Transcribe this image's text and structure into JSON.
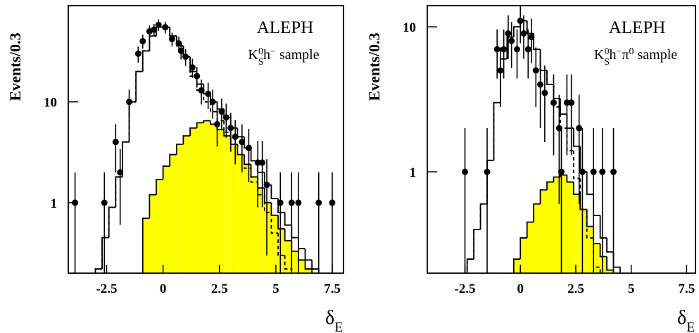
{
  "chart_data": [
    {
      "type": "histogram",
      "ylabel": "Events/0.3",
      "xlabel": [
        {
          "text": "δ"
        },
        {
          "text": "E",
          "pos": "sub"
        }
      ],
      "annotations": [
        "ALEPH"
      ],
      "sample_label": [
        {
          "text": "K"
        },
        {
          "text": "S",
          "pos": "sub"
        },
        {
          "text": "0",
          "pos": "sup"
        },
        {
          "text": "h"
        },
        {
          "text": "−",
          "pos": "sup"
        },
        {
          "text": " sample"
        }
      ],
      "xlim": [
        -4.2,
        8.0
      ],
      "ylim": [
        0.2,
        90
      ],
      "log_y": true,
      "xticks": [
        -2.5,
        0,
        2.5,
        5,
        7.5
      ],
      "yticks": [
        1,
        10
      ],
      "bins": [
        -3.0,
        -2.7,
        -2.4,
        -2.1,
        -1.8,
        -1.5,
        -1.2,
        -0.9,
        -0.6,
        -0.3,
        0,
        0.3,
        0.6,
        0.9,
        1.2,
        1.5,
        1.8,
        2.1,
        2.4,
        2.7,
        3.0,
        3.3,
        3.6,
        3.9,
        4.2,
        4.5,
        4.8,
        5.1,
        5.4,
        5.7,
        6.0,
        6.3,
        6.6,
        6.9,
        7.2,
        7.5
      ],
      "series": [
        {
          "style": "filled",
          "color": "#ffff00",
          "values": [
            null,
            null,
            null,
            null,
            null,
            null,
            null,
            0.7,
            1.2,
            1.7,
            2.3,
            3,
            3.8,
            4.6,
            5.5,
            6.2,
            6.5,
            6,
            5.3,
            4.6,
            3.8,
            3,
            2.4,
            1.8,
            1.4,
            1.0,
            0.75,
            0.55,
            0.42,
            0.33,
            0.27,
            0.22,
            null,
            null,
            null
          ]
        },
        {
          "style": "dashed",
          "color": "#000000",
          "values": [
            0.22,
            0.45,
            0.9,
            1.8,
            4,
            10,
            20,
            32,
            45,
            55,
            55,
            45,
            36,
            28,
            18,
            13,
            10,
            8,
            6.5,
            5,
            3.8,
            3,
            2.2,
            1.6,
            1.2,
            0.8,
            0.5,
            0.3,
            0.22,
            null,
            null,
            null,
            null,
            null,
            null
          ]
        },
        {
          "style": "solid",
          "color": "#000000",
          "values": [
            0.22,
            0.45,
            0.9,
            1.8,
            4,
            10,
            20,
            32,
            45,
            55,
            55,
            45,
            36,
            28,
            20,
            15,
            12,
            10,
            8.5,
            7,
            5.5,
            4.5,
            3.5,
            2.6,
            2.0,
            1.5,
            1.1,
            0.8,
            0.6,
            0.45,
            0.35,
            0.27,
            0.22,
            null,
            null
          ]
        }
      ],
      "points": {
        "color": "#000000",
        "x": [
          -3.9,
          -2.6,
          -2.1,
          -1.9,
          -1.5,
          -1.1,
          -0.9,
          -0.6,
          -0.4,
          -0.2,
          0.1,
          0.4,
          0.7,
          0.8,
          1.0,
          1.3,
          1.5,
          1.7,
          2.0,
          2.2,
          2.4,
          2.6,
          2.8,
          3.0,
          3.2,
          3.5,
          3.8,
          4.2,
          4.4,
          4.6,
          5.2,
          5.7,
          6.0,
          6.9,
          7.5
        ],
        "values": [
          1,
          1,
          4,
          2,
          10,
          30,
          40,
          50,
          52,
          58,
          55,
          42,
          38,
          32,
          28,
          22,
          18,
          13,
          12,
          10,
          6,
          8,
          7,
          5.5,
          4.5,
          4,
          3.5,
          2.5,
          2.5,
          1.5,
          1,
          1,
          1,
          1,
          1
        ],
        "errors": [
          1,
          1,
          2,
          1.4,
          3.2,
          5.5,
          6.3,
          7.1,
          7.2,
          7.6,
          7.4,
          6.5,
          6.2,
          5.7,
          5.3,
          4.7,
          4.2,
          3.6,
          3.5,
          3.2,
          2.4,
          2.8,
          2.6,
          2.3,
          2.1,
          2,
          1.9,
          1.6,
          1.6,
          1.2,
          1,
          1,
          1,
          1,
          1
        ]
      }
    },
    {
      "type": "histogram",
      "ylabel": "Events/0.3",
      "xlabel": [
        {
          "text": "δ"
        },
        {
          "text": "E",
          "pos": "sub"
        }
      ],
      "annotations": [
        "ALEPH"
      ],
      "sample_label": [
        {
          "text": "K"
        },
        {
          "text": "S",
          "pos": "sub"
        },
        {
          "text": "0",
          "pos": "sup"
        },
        {
          "text": "h"
        },
        {
          "text": "−",
          "pos": "sup"
        },
        {
          "text": "π"
        },
        {
          "text": "0",
          "pos": "sup"
        },
        {
          "text": " sample"
        }
      ],
      "xlim": [
        -4.2,
        7.9
      ],
      "ylim": [
        0.2,
        14
      ],
      "log_y": true,
      "xticks": [
        -2.5,
        0,
        2.5,
        5,
        7.5
      ],
      "yticks": [
        1,
        10
      ],
      "bins": [
        -2.7,
        -2.4,
        -2.1,
        -1.8,
        -1.5,
        -1.2,
        -0.9,
        -0.6,
        -0.3,
        0,
        0.3,
        0.6,
        0.9,
        1.2,
        1.5,
        1.8,
        2.1,
        2.4,
        2.7,
        3.0,
        3.3,
        3.6,
        3.9,
        4.2,
        4.5
      ],
      "series": [
        {
          "style": "filled",
          "color": "#ffff00",
          "values": [
            null,
            null,
            null,
            null,
            null,
            null,
            null,
            null,
            0.25,
            0.35,
            0.45,
            0.6,
            0.75,
            0.85,
            0.92,
            0.95,
            0.85,
            0.7,
            0.55,
            0.42,
            0.32,
            0.26,
            0.21,
            null
          ]
        },
        {
          "style": "dashed",
          "color": "#000000",
          "values": [
            null,
            0.25,
            0.4,
            0.6,
            1.2,
            3,
            6,
            8.5,
            10,
            11,
            9,
            7,
            5,
            4,
            2.8,
            2,
            1.4,
            0.9,
            0.55,
            0.35,
            0.22,
            null,
            null,
            null
          ]
        },
        {
          "style": "solid",
          "color": "#000000",
          "values": [
            null,
            0.25,
            0.4,
            0.6,
            1.2,
            3,
            6,
            8.5,
            10,
            11,
            9,
            7,
            5,
            4,
            3.2,
            2.5,
            2,
            1.5,
            1.0,
            0.7,
            0.5,
            0.35,
            0.28,
            0.22
          ]
        }
      ],
      "points": {
        "color": "#000000",
        "x": [
          -2.5,
          -1.5,
          -1.05,
          -0.9,
          -0.75,
          -0.55,
          -0.4,
          -0.15,
          0.0,
          0.15,
          0.35,
          0.5,
          0.7,
          0.9,
          1.1,
          1.5,
          1.75,
          1.85,
          2.1,
          2.3,
          2.65,
          2.8,
          3.3,
          3.7,
          4.2
        ],
        "values": [
          1,
          1,
          7,
          5,
          7,
          9,
          8,
          7,
          11,
          9,
          7,
          8.5,
          5,
          4,
          3.5,
          3,
          2,
          1,
          3,
          3,
          2,
          1,
          1,
          1,
          1
        ],
        "errors": [
          1,
          1,
          2.6,
          2.2,
          2.6,
          3,
          2.8,
          2.6,
          3.3,
          3,
          2.6,
          2.9,
          2.2,
          2,
          1.9,
          1.7,
          1.4,
          1,
          1.7,
          1.7,
          1.4,
          1,
          1,
          1,
          1
        ]
      }
    }
  ]
}
